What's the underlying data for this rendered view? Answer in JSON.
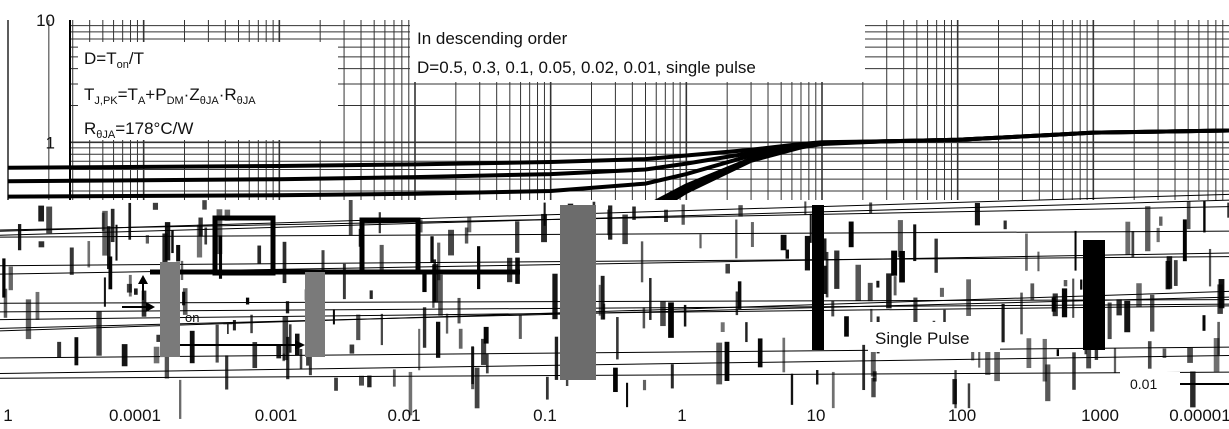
{
  "chart_data": {
    "type": "line",
    "title": "",
    "xlabel": "",
    "ylabel": "",
    "xscale": "log",
    "yscale": "log",
    "xlim": [
      1e-05,
      10000
    ],
    "ylim": [
      0.01,
      10
    ],
    "grid": true,
    "x_tick_labels": [
      "1",
      "0.0001",
      "0.001",
      "0.01",
      "0.1",
      "1",
      "10",
      "100",
      "1000",
      "0.00001"
    ],
    "y_tick_labels": [
      "10",
      "1"
    ],
    "annotations": {
      "formula_lines": [
        "D=T",
        "on",
        "/T",
        "T",
        "J,PK",
        "=T",
        "A",
        "+P",
        "DM",
        "·Z",
        "θJA",
        "·R",
        "θJA",
        "R",
        "θJA",
        "=178°C/W"
      ],
      "legend_title": "In descending order",
      "legend_list": "D=0.5, 0.3, 0.1, 0.05, 0.02, 0.01, single pulse",
      "single_pulse_label": "Single Pulse",
      "residual_label": "0.01",
      "inset_ton_label": "on",
      "inset_t_label": "T"
    },
    "series": [
      {
        "label": "D=0.5",
        "x": [
          1e-05,
          0.001,
          0.01,
          0.1,
          0.5,
          1,
          3,
          7,
          10,
          30,
          100,
          500,
          1000,
          10000
        ],
        "y": [
          0.62,
          0.64,
          0.66,
          0.69,
          0.73,
          0.78,
          0.87,
          0.97,
          1.0,
          1.02,
          1.05,
          1.15,
          1.2,
          1.25
        ]
      },
      {
        "label": "D=0.3",
        "x": [
          1e-05,
          0.001,
          0.01,
          0.1,
          0.5,
          1,
          3,
          7,
          10,
          30,
          100,
          500,
          1000,
          10000
        ],
        "y": [
          0.48,
          0.5,
          0.52,
          0.55,
          0.6,
          0.67,
          0.82,
          0.95,
          0.99,
          1.02,
          1.05,
          1.15,
          1.2,
          1.25
        ]
      },
      {
        "label": "D=0.1",
        "x": [
          1e-05,
          0.001,
          0.01,
          0.1,
          0.5,
          1,
          3,
          7,
          10,
          30,
          100,
          500,
          1000,
          10000
        ],
        "y": [
          0.36,
          0.37,
          0.38,
          0.4,
          0.46,
          0.55,
          0.78,
          0.94,
          0.98,
          1.02,
          1.05,
          1.15,
          1.2,
          1.25
        ]
      },
      {
        "label": "D=0.05",
        "x": [
          1e-05,
          0.001,
          0.01,
          0.1,
          0.3,
          0.5,
          1,
          3,
          7,
          10,
          30,
          100,
          1000,
          10000
        ],
        "y": [
          0.08,
          0.09,
          0.11,
          0.17,
          0.24,
          0.3,
          0.45,
          0.74,
          0.93,
          0.98,
          1.02,
          1.05,
          1.2,
          1.25
        ]
      },
      {
        "label": "D=0.02",
        "x": [
          1e-05,
          0.001,
          0.01,
          0.1,
          0.3,
          0.5,
          1,
          3,
          7,
          10,
          30,
          100,
          1000,
          10000
        ],
        "y": [
          0.04,
          0.05,
          0.07,
          0.13,
          0.21,
          0.28,
          0.43,
          0.72,
          0.92,
          0.97,
          1.02,
          1.05,
          1.2,
          1.25
        ]
      },
      {
        "label": "D=0.01",
        "x": [
          1e-05,
          0.001,
          0.01,
          0.1,
          0.3,
          0.5,
          1,
          3,
          7,
          10,
          30,
          100,
          1000,
          10000
        ],
        "y": [
          0.025,
          0.035,
          0.055,
          0.11,
          0.19,
          0.26,
          0.41,
          0.71,
          0.91,
          0.97,
          1.02,
          1.05,
          1.2,
          1.25
        ]
      },
      {
        "label": "single pulse",
        "x": [
          1e-05,
          0.001,
          0.01,
          0.1,
          0.3,
          0.5,
          1,
          3,
          7,
          10,
          30,
          100,
          1000,
          10000
        ],
        "y": [
          0.012,
          0.02,
          0.04,
          0.09,
          0.17,
          0.24,
          0.39,
          0.7,
          0.9,
          0.96,
          1.01,
          1.05,
          1.2,
          1.25
        ]
      }
    ]
  }
}
